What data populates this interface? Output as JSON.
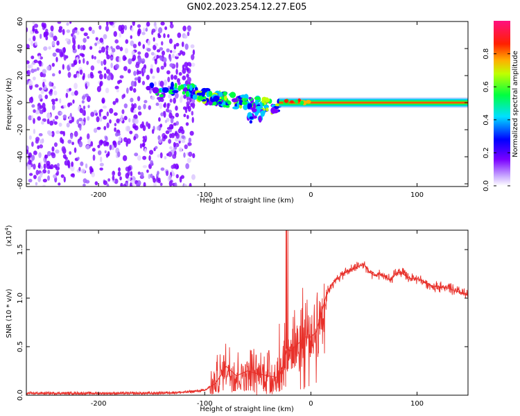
{
  "title": "GN02.2023.254.12.27.E05",
  "chart_data": [
    {
      "type": "heatmap",
      "xlabel": "Height of straight line (km)",
      "ylabel": "Frequency (Hz)",
      "xlim": [
        -268,
        148
      ],
      "ylim": [
        -62,
        60
      ],
      "xticks": [
        -200,
        -100,
        0,
        100
      ],
      "yticks": [
        -60,
        -40,
        -20,
        0,
        20,
        40,
        60
      ],
      "colorbar": {
        "label": "Normalized spectral amplitude",
        "range": [
          0.0,
          1.0
        ],
        "ticks": [
          0.0,
          0.2,
          0.4,
          0.6,
          0.8
        ]
      },
      "regions": [
        {
          "x_from": -268,
          "x_to": -110,
          "freq_from": -62,
          "freq_to": 60,
          "amplitude_level": 0.1
        },
        {
          "x_from": -155,
          "x_to": -110,
          "freq_center": 9,
          "amplitude_level": 0.25
        },
        {
          "x_from": -110,
          "x_to": -30,
          "freq_center": 0,
          "amplitude_level": 0.45
        },
        {
          "x_from": -60,
          "x_to": -45,
          "freq_center": -10,
          "amplitude_level": 0.35
        },
        {
          "x_from": -30,
          "x_to": 148,
          "freq_center": 0,
          "amplitude_level": 0.9
        }
      ]
    },
    {
      "type": "line",
      "xlabel": "Height of straight line (km)",
      "ylabel": "SNR (10 * v/v)",
      "scale_label": "(x10",
      "scale_exponent": "4",
      "xlim": [
        -268,
        148
      ],
      "ylim": [
        0,
        1.7
      ],
      "xticks": [
        -200,
        -100,
        0,
        100
      ],
      "yticks": [
        0.0,
        0.5,
        1.0,
        1.5
      ],
      "color": "#e8302a",
      "series": [
        {
          "x": [
            -268,
            -200,
            -150,
            -120,
            -100,
            -90,
            -85,
            -80,
            -75,
            -70,
            -60,
            -50,
            -40,
            -30,
            -25,
            -22,
            -20,
            -15,
            -10,
            -5,
            0,
            5,
            10,
            15,
            20,
            25,
            30,
            35,
            40,
            45,
            50,
            55,
            60,
            65,
            70,
            75,
            80,
            85,
            90,
            95,
            100,
            105,
            110,
            115,
            120,
            130,
            140,
            148
          ],
          "y": [
            0.02,
            0.02,
            0.02,
            0.03,
            0.05,
            0.12,
            0.2,
            0.3,
            0.25,
            0.2,
            0.25,
            0.22,
            0.2,
            0.18,
            0.35,
            0.5,
            0.45,
            0.5,
            0.55,
            0.6,
            0.6,
            0.65,
            0.85,
            1.05,
            1.15,
            1.2,
            1.25,
            1.28,
            1.3,
            1.33,
            1.35,
            1.27,
            1.23,
            1.25,
            1.22,
            1.18,
            1.25,
            1.27,
            1.22,
            1.2,
            1.2,
            1.18,
            1.15,
            1.12,
            1.12,
            1.1,
            1.06,
            1.03
          ]
        }
      ]
    }
  ]
}
